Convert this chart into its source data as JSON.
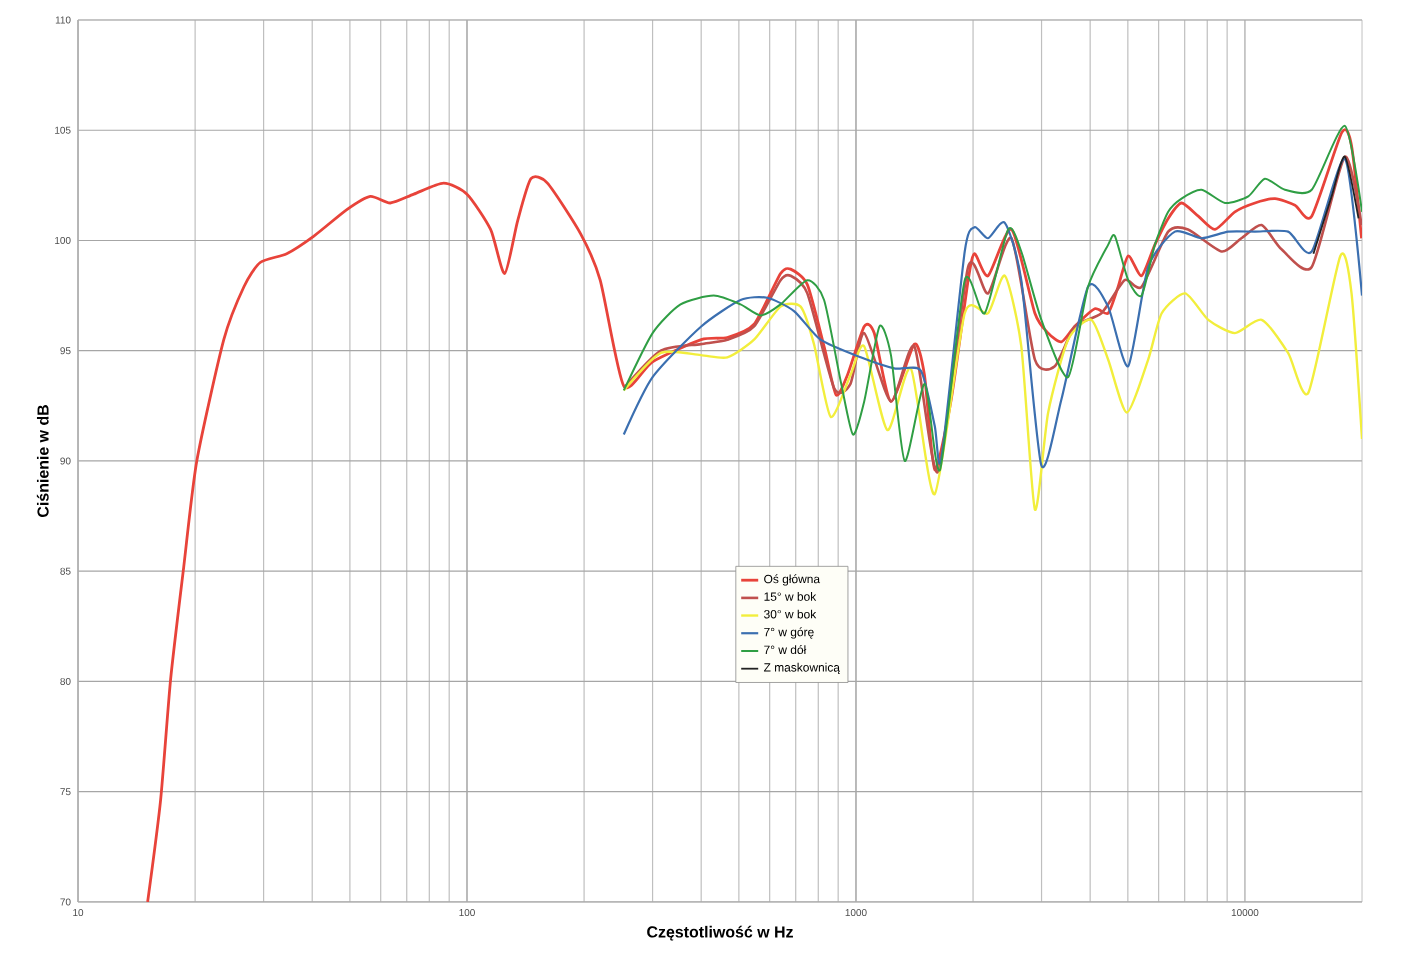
{
  "chart_data": {
    "type": "line",
    "xlabel": "Częstotliwość w Hz",
    "ylabel": "Ciśnienie w dB",
    "log": "x",
    "grid": true,
    "legend": "bottom",
    "xlim": [
      10,
      20000
    ],
    "ylim": [
      70,
      110
    ],
    "xticks": [
      10,
      100,
      1000,
      10000
    ],
    "yticks": [
      70,
      75,
      80,
      85,
      90,
      95,
      100,
      105,
      110
    ],
    "series": [
      {
        "name": "Oś główna",
        "color": "#e8433a",
        "x": [
          15.1,
          16.3,
          17.3,
          18.7,
          20.2,
          23.7,
          26.7,
          29.4,
          34.4,
          40.4,
          49.1,
          56.4,
          63.5,
          73,
          87.1,
          100,
          115,
          125,
          135,
          146,
          161,
          196,
          220,
          253,
          300,
          400,
          467,
          547,
          640,
          679,
          750,
          828,
          889,
          951,
          1050,
          1114,
          1230,
          1413,
          1500,
          1594,
          1758,
          1943,
          2018,
          2186,
          2512,
          2884,
          3120,
          3375,
          3652,
          4111,
          4449,
          4721,
          5010,
          5423,
          5866,
          6350,
          6871,
          7587,
          8374,
          9425,
          10610,
          11950,
          13450,
          14850,
          17750,
          18800,
          19950
        ],
        "values": [
          70,
          74.6,
          80.1,
          85.2,
          90.0,
          95.5,
          97.9,
          99.0,
          99.4,
          100.2,
          101.4,
          102.0,
          101.7,
          102.1,
          102.6,
          102.1,
          100.5,
          98.5,
          100.9,
          102.8,
          102.6,
          100.3,
          98.2,
          93.4,
          94.5,
          95.5,
          95.6,
          96.2,
          98.5,
          98.7,
          98.0,
          95.2,
          93.0,
          93.9,
          96.1,
          95.8,
          92.7,
          95.3,
          93.9,
          89.6,
          92.8,
          98.2,
          99.4,
          98.4,
          100.5,
          96.7,
          95.8,
          95.4,
          96.1,
          96.9,
          96.7,
          97.9,
          99.3,
          98.4,
          99.8,
          101.0,
          101.7,
          101.1,
          100.5,
          101.3,
          101.7,
          101.9,
          101.6,
          101.1,
          104.9,
          104.3,
          100.1
        ]
      },
      {
        "name": "15° w bok",
        "color": "#c0504d",
        "x": [
          253,
          315,
          399,
          467,
          547,
          640,
          679,
          750,
          879,
          968,
          1050,
          1230,
          1413,
          1625,
          1943,
          2186,
          2512,
          2884,
          3245,
          3652,
          4276,
          4906,
          5423,
          6350,
          7140,
          8710,
          9790,
          11040,
          12420,
          14850,
          18070,
          19950
        ],
        "values": [
          93.3,
          95.0,
          95.3,
          95.5,
          96.1,
          98.2,
          98.4,
          97.6,
          93.3,
          93.5,
          95.8,
          92.7,
          95.2,
          89.5,
          98.8,
          97.6,
          100.1,
          94.6,
          94.3,
          96.1,
          96.7,
          98.2,
          97.9,
          100.4,
          100.5,
          99.5,
          100.1,
          100.7,
          99.6,
          98.8,
          103.8,
          100.7
        ]
      },
      {
        "name": "30° w bok",
        "color": "#f2ee3c",
        "x": [
          253,
          315,
          399,
          467,
          547,
          640,
          721,
          780,
          861,
          968,
          1050,
          1205,
          1384,
          1594,
          1904,
          2186,
          2414,
          2661,
          2884,
          3120,
          3510,
          4030,
          4449,
          4970,
          5640,
          6110,
          7020,
          8050,
          9425,
          11040,
          12910,
          14560,
          17590,
          18800,
          20000
        ],
        "values": [
          93.2,
          94.9,
          94.8,
          94.7,
          95.5,
          97.0,
          97.0,
          95.3,
          92.0,
          93.9,
          95.2,
          91.4,
          94.2,
          88.5,
          96.7,
          96.7,
          98.4,
          95.2,
          87.8,
          92.2,
          95.5,
          96.4,
          94.6,
          92.2,
          94.6,
          96.7,
          97.6,
          96.4,
          95.8,
          96.4,
          94.9,
          93.1,
          99.3,
          97.6,
          91.0
        ]
      },
      {
        "name": "7° w górę",
        "color": "#3b6fb0",
        "x": [
          253,
          300,
          400,
          505,
          591,
          693,
          811,
          1028,
          1254,
          1468,
          1594,
          1658,
          1904,
          2018,
          2186,
          2414,
          2661,
          2997,
          3375,
          3951,
          4449,
          5010,
          5640,
          6607,
          7737,
          9060,
          10610,
          12910,
          14850,
          18070,
          20000
        ],
        "values": [
          91.2,
          93.8,
          96.1,
          97.3,
          97.4,
          96.8,
          95.5,
          94.7,
          94.2,
          94.1,
          91.6,
          90.1,
          99.5,
          100.6,
          100.1,
          100.8,
          98.2,
          89.8,
          92.8,
          97.9,
          97.0,
          94.3,
          98.8,
          100.4,
          100.1,
          100.4,
          100.4,
          100.4,
          99.5,
          103.7,
          97.5
        ]
      },
      {
        "name": "7° w dół",
        "color": "#2f9e44",
        "x": [
          253,
          300,
          354,
          431,
          505,
          569,
          640,
          750,
          828,
          914,
          982,
          1050,
          1149,
          1230,
          1335,
          1502,
          1645,
          1904,
          2143,
          2461,
          2661,
          2997,
          3510,
          3951,
          4449,
          4630,
          5010,
          5423,
          5866,
          6350,
          6871,
          7737,
          8886,
          10200,
          11250,
          12670,
          14850,
          18070,
          20000
        ],
        "values": [
          93.2,
          95.8,
          97.1,
          97.5,
          97.1,
          96.6,
          97.1,
          98.2,
          97.3,
          93.6,
          91.2,
          92.7,
          96.1,
          94.8,
          90.0,
          93.5,
          89.6,
          98.2,
          96.7,
          100.5,
          99.5,
          96.4,
          93.8,
          97.9,
          99.8,
          100.2,
          98.2,
          97.5,
          99.8,
          101.3,
          101.9,
          102.3,
          101.7,
          102.0,
          102.8,
          102.3,
          102.3,
          105.2,
          101.3
        ]
      },
      {
        "name": "Z maskownicą",
        "color": "#222222",
        "x": [
          15000,
          16700,
          18070,
          19590
        ],
        "values": [
          99.4,
          102.0,
          103.8,
          101.0
        ]
      }
    ]
  }
}
